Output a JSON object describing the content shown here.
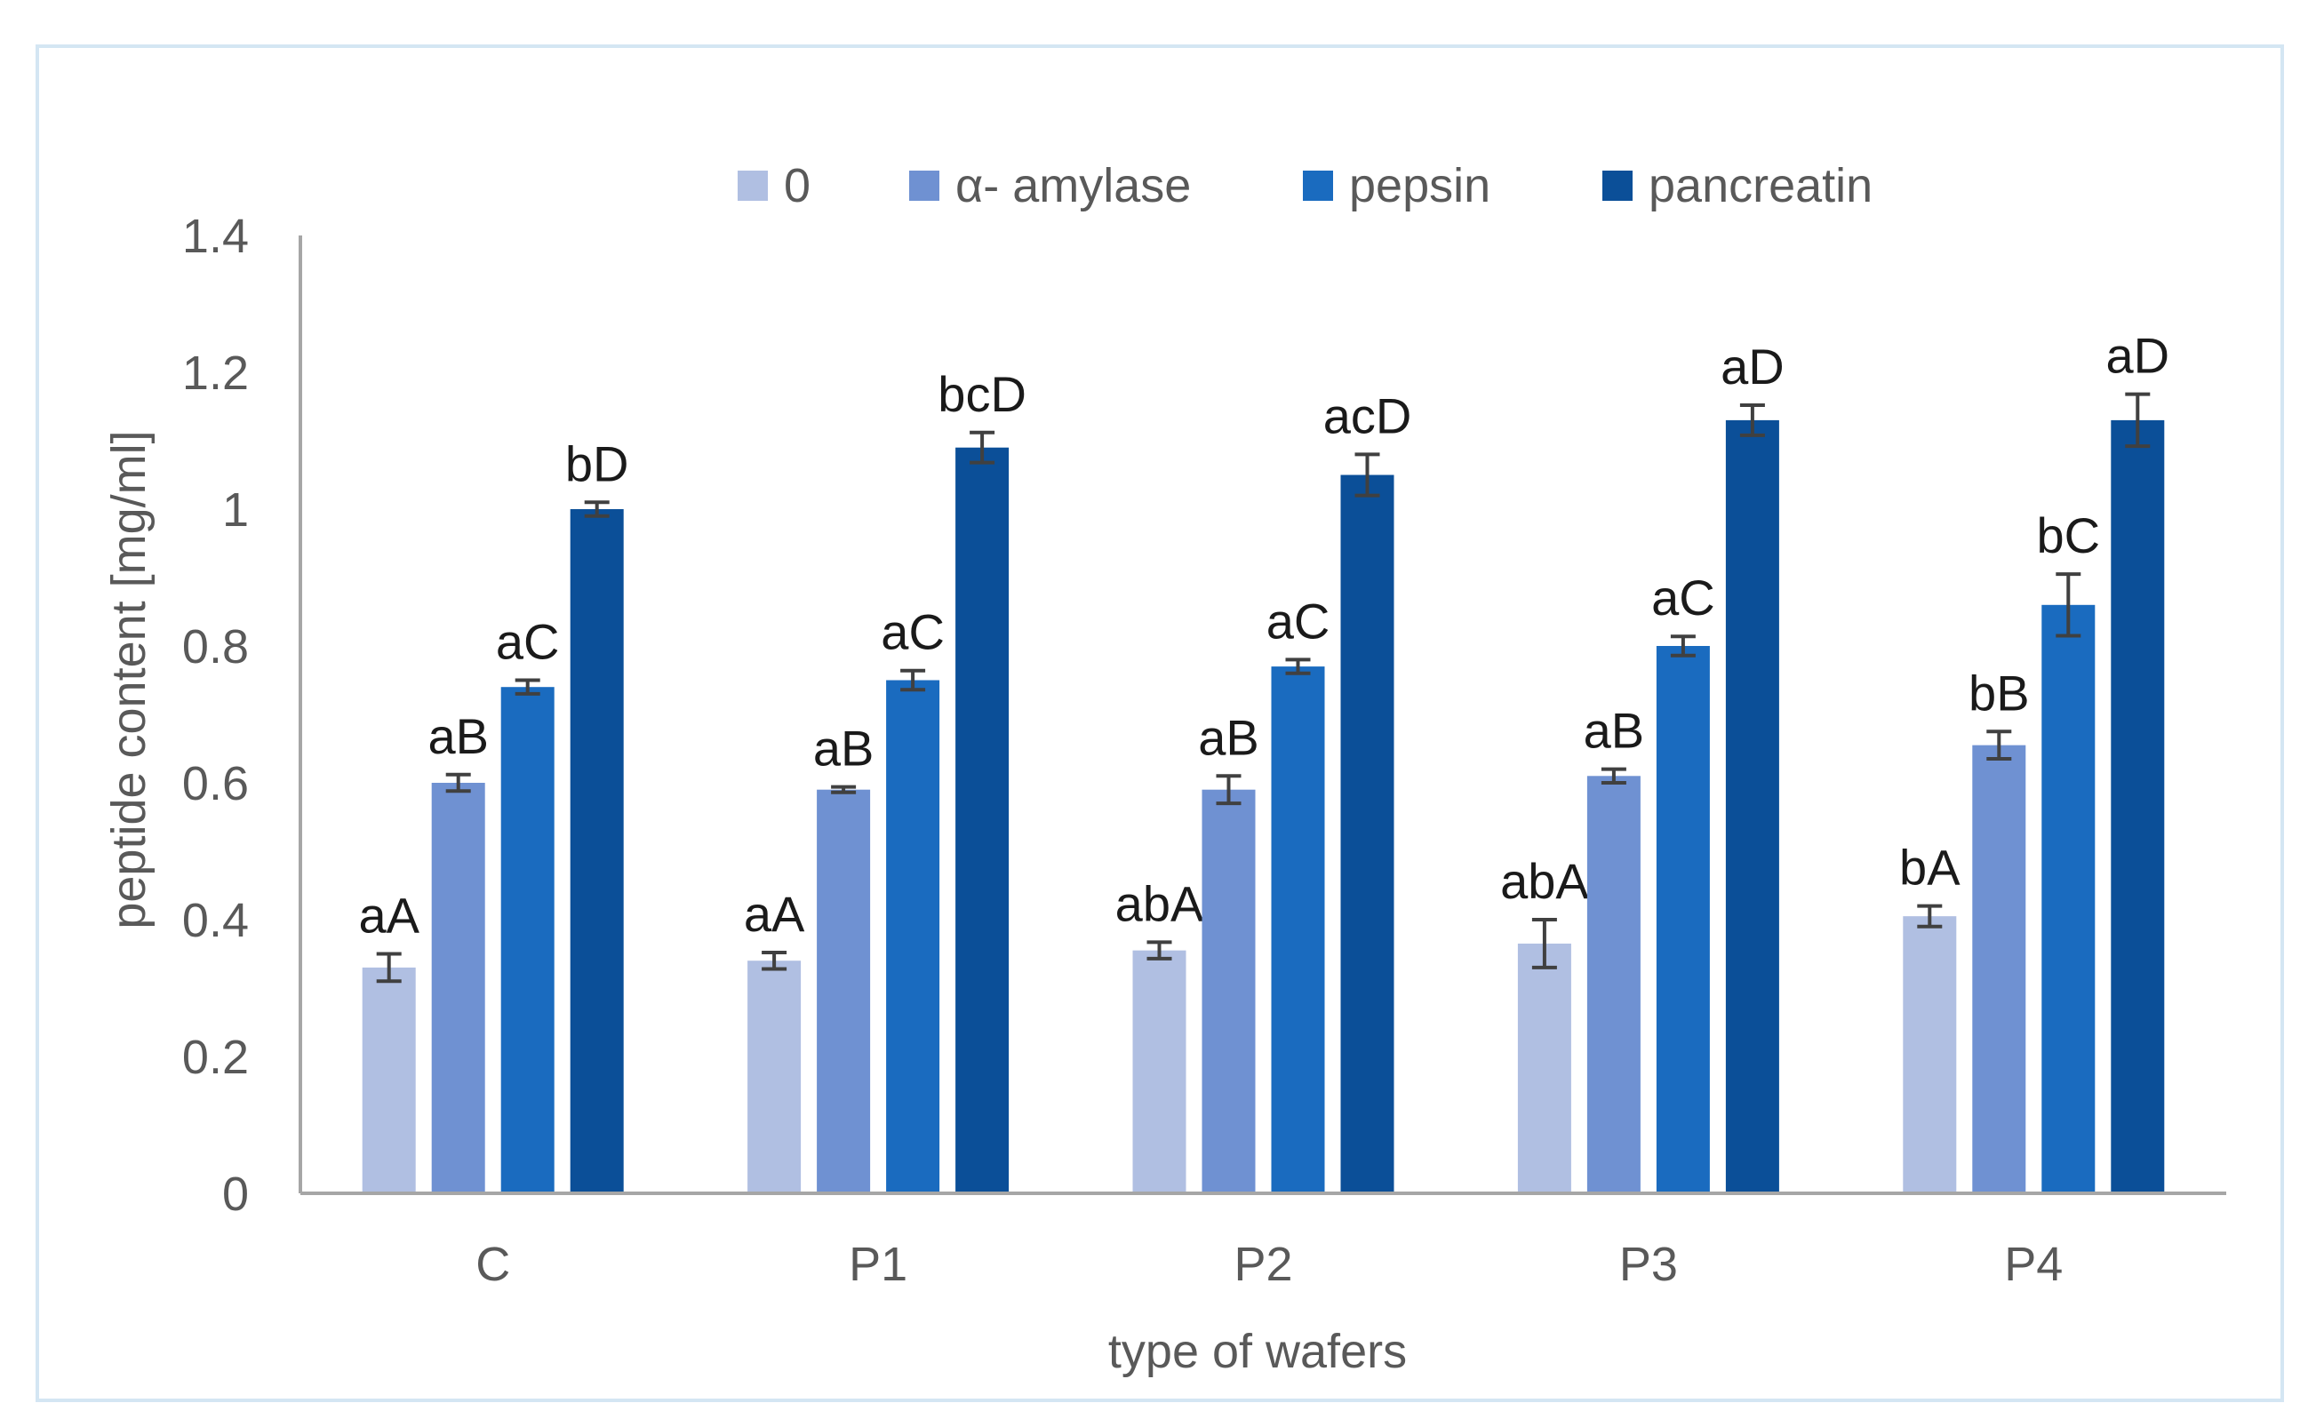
{
  "chart_data": {
    "type": "bar",
    "title": "",
    "xlabel": "type of wafers",
    "ylabel": "peptide content [mg/ml]",
    "ylim": [
      0,
      1.4
    ],
    "yticks": [
      "0",
      "0.2",
      "0.4",
      "0.6",
      "0.8",
      "1",
      "1.2",
      "1.4"
    ],
    "legend_position": "top",
    "categories": [
      "C",
      "P1",
      "P2",
      "P3",
      "P4"
    ],
    "series": [
      {
        "name": "0",
        "color": "#b0bfe2",
        "values": [
          0.33,
          0.34,
          0.355,
          0.365,
          0.405
        ],
        "errors": [
          0.02,
          0.012,
          0.012,
          0.035,
          0.015
        ],
        "labels": [
          "aA",
          "aA",
          "abA",
          "abA",
          "bA"
        ]
      },
      {
        "name": "α- amylase",
        "color": "#6f91d2",
        "values": [
          0.6,
          0.59,
          0.59,
          0.61,
          0.655
        ],
        "errors": [
          0.012,
          0.004,
          0.02,
          0.01,
          0.02
        ],
        "labels": [
          "aB",
          "aB",
          "aB",
          "aB",
          "bB"
        ]
      },
      {
        "name": "pepsin",
        "color": "#1a6bbf",
        "values": [
          0.74,
          0.75,
          0.77,
          0.8,
          0.86
        ],
        "errors": [
          0.01,
          0.014,
          0.01,
          0.014,
          0.045
        ],
        "labels": [
          "aC",
          "aC",
          "aC",
          "aC",
          "bC"
        ]
      },
      {
        "name": "pancreatin",
        "color": "#0b4f98",
        "values": [
          1.0,
          1.09,
          1.05,
          1.13,
          1.13
        ],
        "errors": [
          0.01,
          0.022,
          0.03,
          0.022,
          0.038
        ],
        "labels": [
          "bD",
          "bcD",
          "acD",
          "aD",
          "aD"
        ]
      }
    ]
  }
}
